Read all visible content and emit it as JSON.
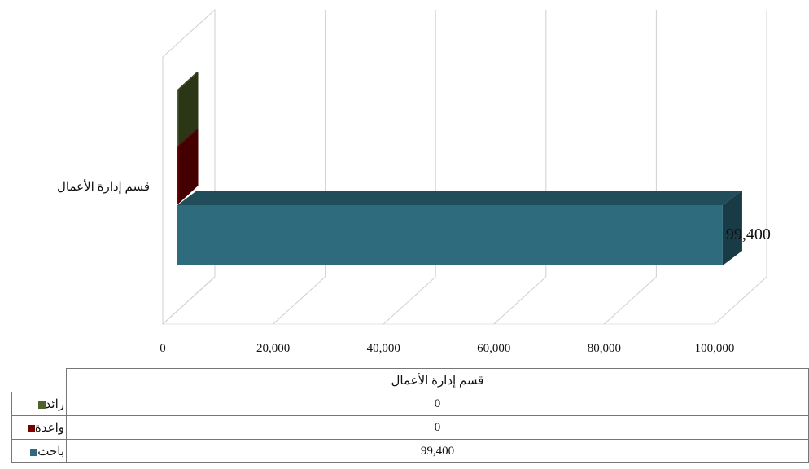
{
  "chart_data": {
    "type": "bar",
    "orientation": "horizontal",
    "categories": [
      "قسم إدارة الأعمال"
    ],
    "series": [
      {
        "name": "رائد",
        "values": [
          0
        ],
        "color": "#4f6228"
      },
      {
        "name": "واعدة",
        "values": [
          0
        ],
        "color": "#7b0000"
      },
      {
        "name": "باحث",
        "values": [
          99400
        ],
        "color": "#2e6b7d"
      }
    ],
    "xlim": [
      0,
      100000
    ],
    "x_ticks": [
      "0",
      "20,000",
      "40,000",
      "60,000",
      "80,000",
      "100,000"
    ],
    "data_labels": [
      "99,400"
    ],
    "grid": true,
    "legend": "data-table-below"
  },
  "table": {
    "column_header": "قسم إدارة الأعمال",
    "rows": [
      {
        "label": "رائد",
        "value": "0",
        "color": "#4f6228"
      },
      {
        "label": "واعدة",
        "value": "0",
        "color": "#7b0000"
      },
      {
        "label": "باحث",
        "value": "99,400",
        "color": "#2e6b7d"
      }
    ]
  }
}
